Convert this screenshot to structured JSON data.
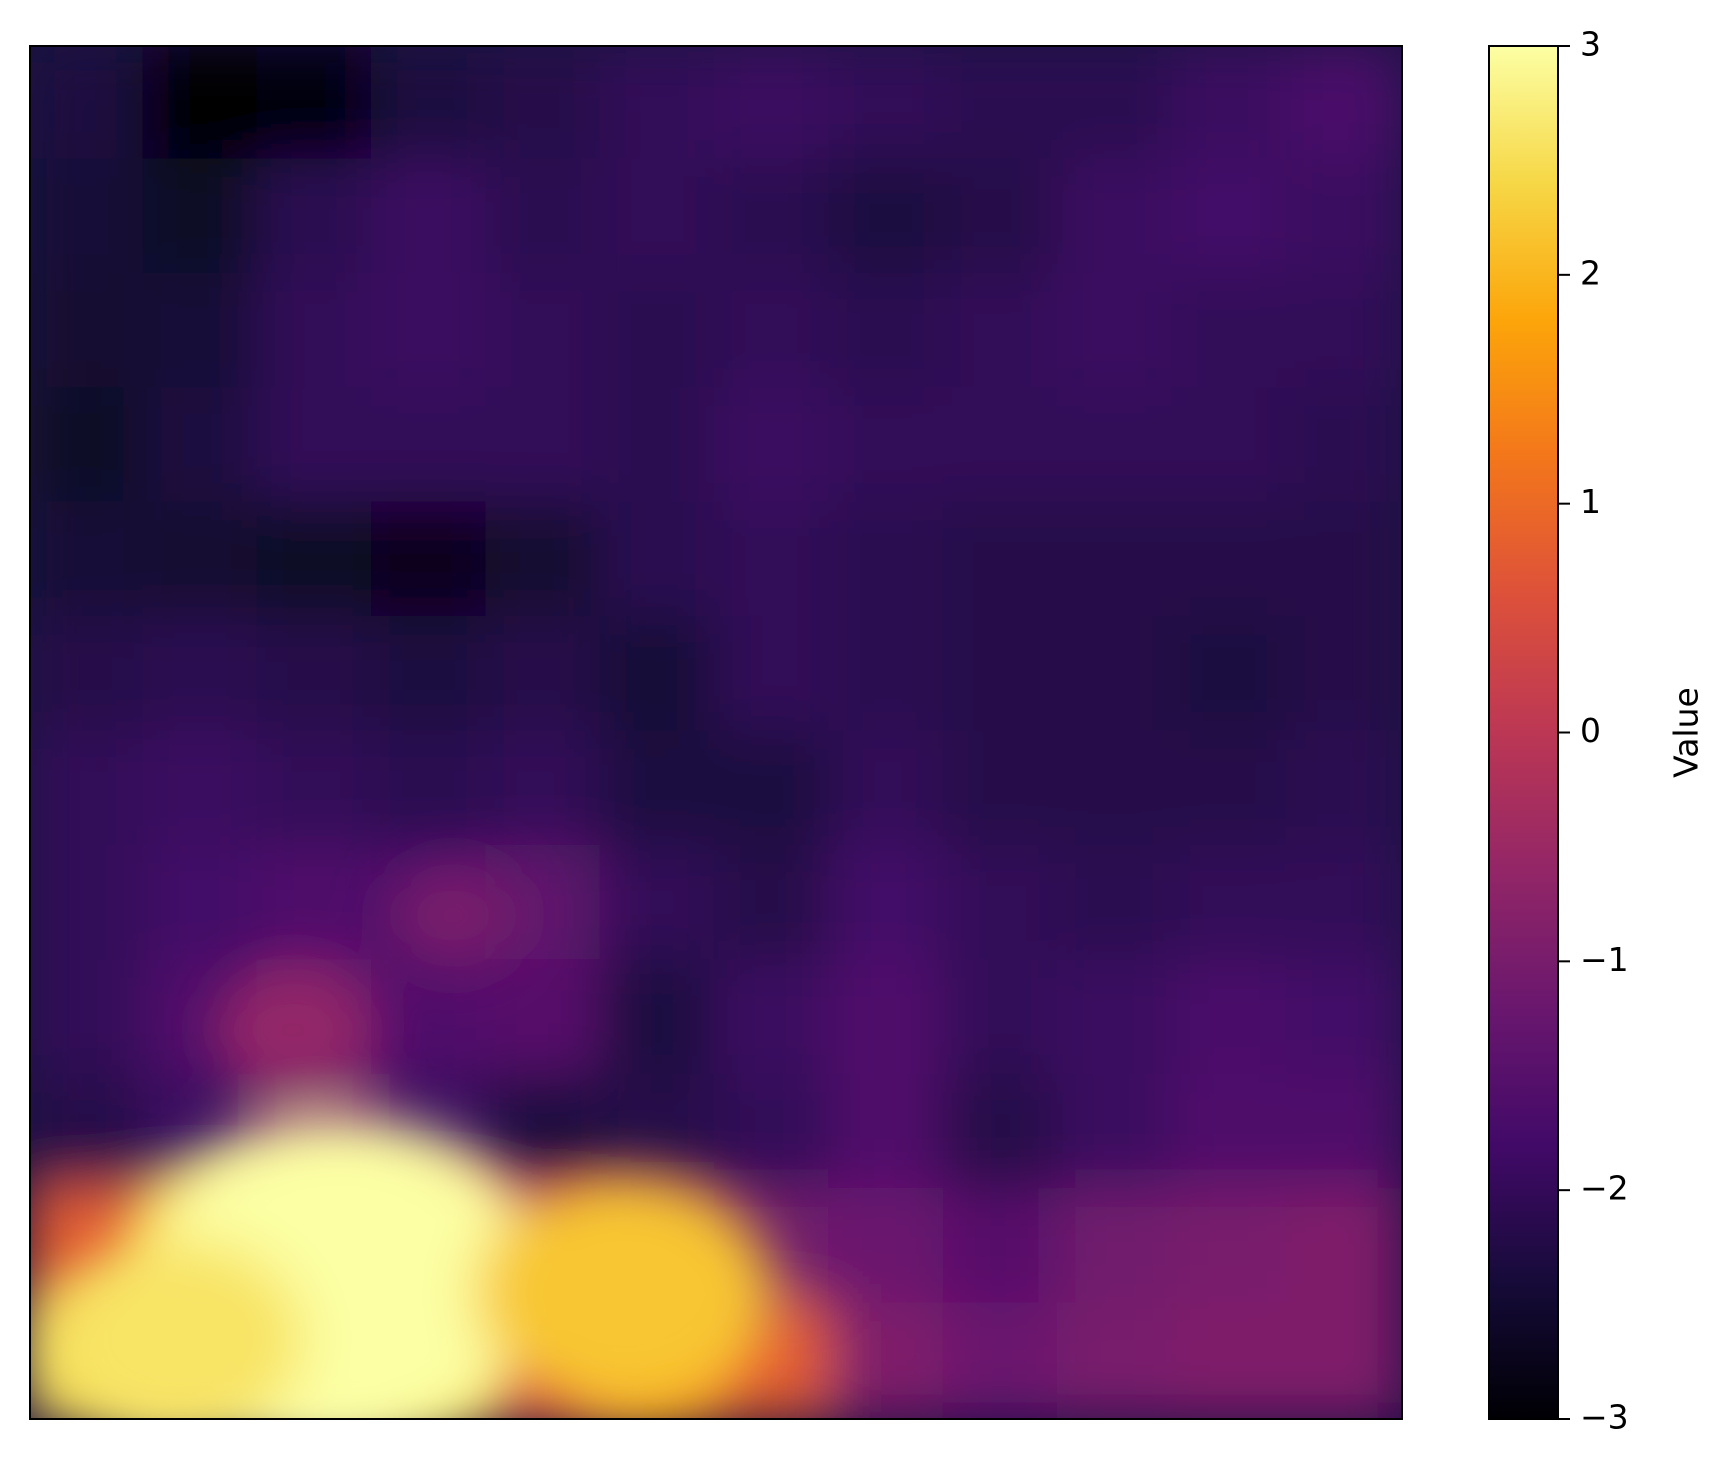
{
  "chart_data": {
    "type": "heatmap",
    "colormap": "inferno",
    "colorbar": {
      "label": "Value",
      "min": -3,
      "max": 3,
      "ticks": [
        {
          "value": 3,
          "label": "3"
        },
        {
          "value": 2,
          "label": "2"
        },
        {
          "value": 1,
          "label": "1"
        },
        {
          "value": 0,
          "label": "0"
        },
        {
          "value": -1,
          "label": "−1"
        },
        {
          "value": -2,
          "label": "−2"
        },
        {
          "value": -3,
          "label": "−3"
        }
      ]
    },
    "axes": {
      "ticks_visible": false,
      "grid": false
    },
    "field_description": "terrain-like field: mostly low values (about -2.5 to -1.5) over most of the map, dark drainage channels branching from the center-left, moderate values (about -1 to 0) along the lower middle and lower right, and a bright high region (about 2 to 3) at the bottom left",
    "value_grid": {
      "rows": 12,
      "cols": 12,
      "values": [
        [
          -2.3,
          -3.0,
          -2.9,
          -2.3,
          -2.2,
          -2.0,
          -1.9,
          -2.0,
          -2.1,
          -2.1,
          -1.9,
          -1.7
        ],
        [
          -2.4,
          -2.6,
          -2.1,
          -1.9,
          -2.1,
          -2.0,
          -2.1,
          -2.3,
          -2.2,
          -1.9,
          -1.8,
          -1.9
        ],
        [
          -2.5,
          -2.4,
          -2.0,
          -1.9,
          -2.0,
          -2.1,
          -2.0,
          -2.1,
          -2.0,
          -1.9,
          -2.0,
          -2.0
        ],
        [
          -2.6,
          -2.3,
          -2.0,
          -2.0,
          -2.0,
          -2.1,
          -1.9,
          -2.0,
          -2.0,
          -2.0,
          -2.0,
          -2.1
        ],
        [
          -2.4,
          -2.5,
          -2.6,
          -2.7,
          -2.5,
          -2.1,
          -2.0,
          -2.1,
          -2.2,
          -2.2,
          -2.2,
          -2.2
        ],
        [
          -2.2,
          -2.1,
          -2.2,
          -2.3,
          -2.2,
          -2.4,
          -2.0,
          -2.1,
          -2.2,
          -2.2,
          -2.3,
          -2.2
        ],
        [
          -2.0,
          -1.9,
          -2.0,
          -2.1,
          -2.0,
          -2.3,
          -2.3,
          -2.0,
          -2.2,
          -2.2,
          -2.2,
          -2.1
        ],
        [
          -2.0,
          -1.8,
          -1.6,
          -1.7,
          -1.4,
          -2.0,
          -2.2,
          -1.8,
          -2.0,
          -2.1,
          -2.0,
          -2.0
        ],
        [
          -2.0,
          -1.6,
          -1.2,
          -1.6,
          -1.5,
          -2.3,
          -1.9,
          -1.6,
          -2.0,
          -1.9,
          -1.7,
          -1.8
        ],
        [
          -2.2,
          -1.9,
          -1.0,
          -1.9,
          -2.3,
          -2.2,
          -2.0,
          -1.6,
          -2.2,
          -1.9,
          -1.6,
          -1.6
        ],
        [
          0.8,
          2.0,
          1.4,
          1.2,
          -0.2,
          -0.8,
          -1.1,
          -1.2,
          -1.5,
          -1.1,
          -1.0,
          -0.9
        ],
        [
          2.5,
          2.9,
          3.0,
          2.4,
          0.5,
          1.5,
          0.8,
          -0.9,
          -1.2,
          -1.0,
          -0.9,
          -0.9
        ]
      ]
    },
    "hotspots": [
      {
        "row": 10.8,
        "col": 2.7,
        "value": 3.0,
        "radius": 1.8
      },
      {
        "row": 11.3,
        "col": 1.3,
        "value": 2.6,
        "radius": 1.1
      },
      {
        "row": 10.9,
        "col": 5.2,
        "value": 2.2,
        "radius": 1.3
      },
      {
        "row": 8.6,
        "col": 2.3,
        "value": -0.6,
        "radius": 0.7
      },
      {
        "row": 7.6,
        "col": 3.7,
        "value": -1.0,
        "radius": 0.6
      }
    ]
  }
}
